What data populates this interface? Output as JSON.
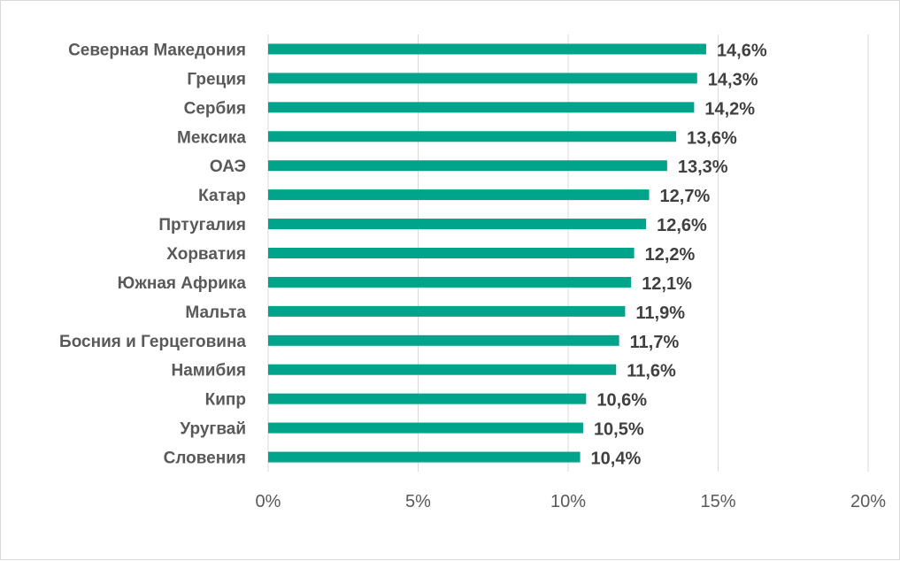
{
  "chart_data": {
    "type": "bar",
    "orientation": "horizontal",
    "categories": [
      "Северная Македония",
      "Греция",
      "Сербия",
      "Мексика",
      "ОАЭ",
      "Катар",
      "Пртугалия",
      "Хорватия",
      "Южная Африка",
      "Мальта",
      "Босния и Герцеговина",
      "Намибия",
      "Кипр",
      "Уругвай",
      "Словения"
    ],
    "values": [
      14.6,
      14.3,
      14.2,
      13.6,
      13.3,
      12.7,
      12.6,
      12.2,
      12.1,
      11.9,
      11.7,
      11.6,
      10.6,
      10.5,
      10.4
    ],
    "value_labels": [
      "14,6%",
      "14,3%",
      "14,2%",
      "13,6%",
      "13,3%",
      "12,7%",
      "12,6%",
      "12,2%",
      "12,1%",
      "11,9%",
      "11,7%",
      "11,6%",
      "10,6%",
      "10,5%",
      "10,4%"
    ],
    "xlim": [
      0,
      20
    ],
    "x_ticks": [
      0,
      5,
      10,
      15,
      20
    ],
    "x_tick_labels": [
      "0%",
      "5%",
      "10%",
      "15%",
      "20%"
    ],
    "grid": "vertical",
    "bar_color": "#00a48a",
    "gridline_color": "#d9d9d9"
  }
}
